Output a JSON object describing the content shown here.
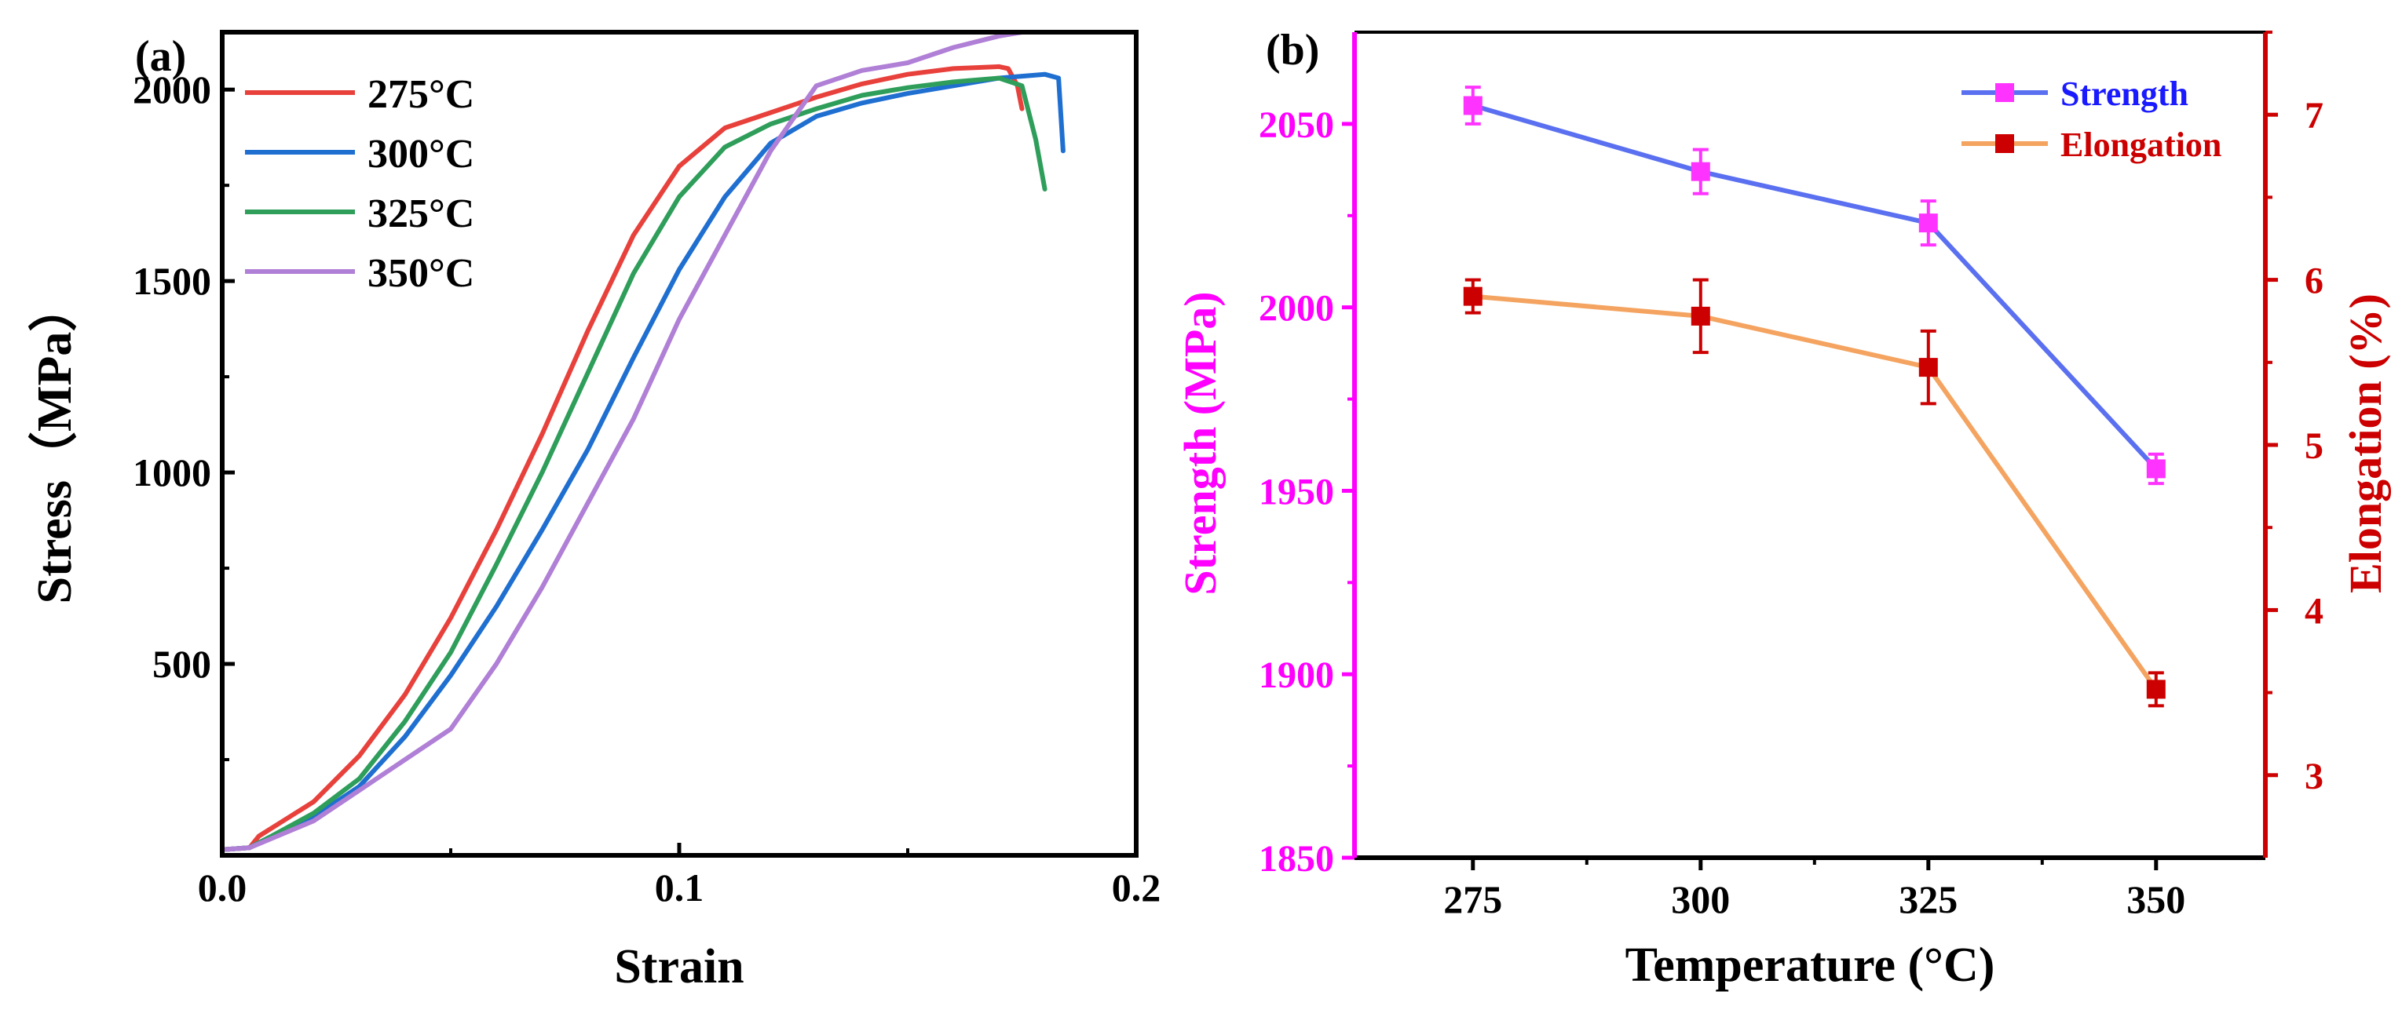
{
  "chart_data": [
    {
      "type": "line",
      "panel_label": "(a)",
      "xlabel": "Strain",
      "ylabel": "Stress（MPa）",
      "xlim": [
        0.0,
        0.2
      ],
      "ylim": [
        0,
        2150
      ],
      "x_ticks": [
        0.0,
        0.1,
        0.2
      ],
      "x_tick_labels": [
        "0.0",
        "0.1",
        "0.2"
      ],
      "y_ticks": [
        500,
        1000,
        1500,
        2000
      ],
      "y_tick_labels": [
        "500",
        "1000",
        "1500",
        "2000"
      ],
      "legend_position": "top-left",
      "series": [
        {
          "name": "275°C",
          "color": "#e8413c",
          "points": [
            [
              0.0,
              15
            ],
            [
              0.006,
              20
            ],
            [
              0.008,
              50
            ],
            [
              0.012,
              80
            ],
            [
              0.02,
              140
            ],
            [
              0.03,
              260
            ],
            [
              0.04,
              420
            ],
            [
              0.05,
              620
            ],
            [
              0.06,
              850
            ],
            [
              0.07,
              1100
            ],
            [
              0.08,
              1370
            ],
            [
              0.09,
              1620
            ],
            [
              0.1,
              1800
            ],
            [
              0.11,
              1900
            ],
            [
              0.12,
              1940
            ],
            [
              0.13,
              1980
            ],
            [
              0.14,
              2015
            ],
            [
              0.15,
              2040
            ],
            [
              0.16,
              2055
            ],
            [
              0.17,
              2060
            ],
            [
              0.172,
              2055
            ],
            [
              0.174,
              2010
            ],
            [
              0.175,
              1950
            ]
          ]
        },
        {
          "name": "300°C",
          "color": "#1f6fd1",
          "points": [
            [
              0.0,
              15
            ],
            [
              0.006,
              20
            ],
            [
              0.01,
              45
            ],
            [
              0.02,
              100
            ],
            [
              0.03,
              180
            ],
            [
              0.04,
              310
            ],
            [
              0.05,
              470
            ],
            [
              0.06,
              650
            ],
            [
              0.07,
              850
            ],
            [
              0.08,
              1060
            ],
            [
              0.09,
              1300
            ],
            [
              0.1,
              1530
            ],
            [
              0.11,
              1720
            ],
            [
              0.12,
              1860
            ],
            [
              0.13,
              1930
            ],
            [
              0.14,
              1965
            ],
            [
              0.15,
              1990
            ],
            [
              0.16,
              2010
            ],
            [
              0.17,
              2030
            ],
            [
              0.18,
              2040
            ],
            [
              0.183,
              2030
            ],
            [
              0.184,
              1840
            ]
          ]
        },
        {
          "name": "325°C",
          "color": "#2e9e5a",
          "points": [
            [
              0.0,
              15
            ],
            [
              0.006,
              20
            ],
            [
              0.01,
              45
            ],
            [
              0.02,
              110
            ],
            [
              0.03,
              200
            ],
            [
              0.04,
              350
            ],
            [
              0.05,
              530
            ],
            [
              0.06,
              760
            ],
            [
              0.07,
              1000
            ],
            [
              0.08,
              1260
            ],
            [
              0.09,
              1520
            ],
            [
              0.1,
              1720
            ],
            [
              0.11,
              1850
            ],
            [
              0.12,
              1910
            ],
            [
              0.13,
              1950
            ],
            [
              0.14,
              1985
            ],
            [
              0.15,
              2005
            ],
            [
              0.16,
              2020
            ],
            [
              0.17,
              2030
            ],
            [
              0.175,
              2010
            ],
            [
              0.178,
              1870
            ],
            [
              0.18,
              1740
            ]
          ]
        },
        {
          "name": "350°C",
          "color": "#b07fd6",
          "points": [
            [
              0.0,
              15
            ],
            [
              0.006,
              20
            ],
            [
              0.01,
              40
            ],
            [
              0.02,
              90
            ],
            [
              0.03,
              170
            ],
            [
              0.04,
              250
            ],
            [
              0.05,
              330
            ],
            [
              0.06,
              500
            ],
            [
              0.07,
              700
            ],
            [
              0.08,
              920
            ],
            [
              0.09,
              1140
            ],
            [
              0.1,
              1400
            ],
            [
              0.11,
              1620
            ],
            [
              0.12,
              1840
            ],
            [
              0.13,
              2010
            ],
            [
              0.14,
              2050
            ],
            [
              0.15,
              2070
            ],
            [
              0.16,
              2110
            ],
            [
              0.17,
              2140
            ],
            [
              0.175,
              2150
            ]
          ]
        }
      ]
    },
    {
      "type": "line",
      "panel_label": "(b)",
      "xlabel": "Temperature (°C)",
      "ylabel_left": "Strength (MPa)",
      "ylabel_right": "Elongation (%)",
      "x": [
        275,
        300,
        325,
        350
      ],
      "x_tick_labels": [
        "275",
        "300",
        "325",
        "350"
      ],
      "xlim": [
        262,
        362
      ],
      "ylim_left": [
        1850,
        2075
      ],
      "ylim_right": [
        2.5,
        7.5
      ],
      "y_left_ticks": [
        1850,
        1900,
        1950,
        2000,
        2050
      ],
      "y_left_tick_labels": [
        "1850",
        "1900",
        "1950",
        "2000",
        "2050"
      ],
      "y_right_ticks": [
        3,
        4,
        5,
        6,
        7
      ],
      "y_right_tick_labels": [
        "3",
        "4",
        "5",
        "6",
        "7"
      ],
      "left_axis_color": "#ff00ff",
      "right_axis_color": "#cc0000",
      "legend_position": "top-right",
      "series": [
        {
          "name": "Strength",
          "axis": "left",
          "line_color": "#5a70f0",
          "marker_color": "#ff33ff",
          "label_color": "#1a1aff",
          "values": [
            2055,
            2037,
            2023,
            1956
          ],
          "errors": [
            5,
            6,
            6,
            4
          ]
        },
        {
          "name": "Elongation",
          "axis": "right",
          "line_color": "#f4a460",
          "marker_color": "#cc0000",
          "label_color": "#cc0000",
          "values": [
            5.9,
            5.78,
            5.47,
            3.52
          ],
          "errors": [
            0.1,
            0.22,
            0.22,
            0.1
          ]
        }
      ]
    }
  ]
}
